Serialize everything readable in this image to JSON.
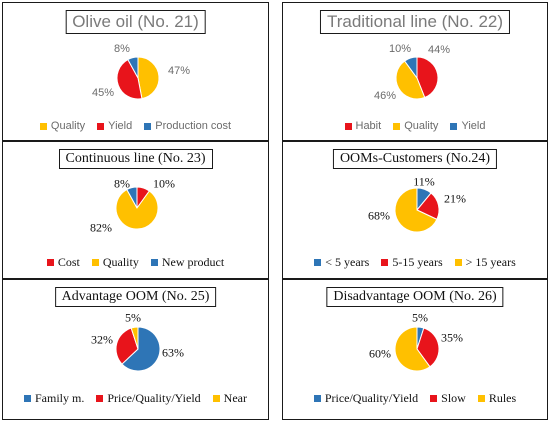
{
  "colors": {
    "red": "#e8141b",
    "yellow": "#ffc000",
    "blue": "#2e75b6"
  },
  "chart_data": [
    {
      "type": "pie",
      "title": "Olive oil (No. 21)",
      "style": "sans",
      "slices": [
        {
          "label": "Quality",
          "value": 47,
          "color": "#ffc000"
        },
        {
          "label": "Yield",
          "value": 45,
          "color": "#e8141b"
        },
        {
          "label": "Production cost",
          "value": 8,
          "color": "#2e75b6"
        }
      ],
      "data_labels": [
        "47%",
        "45%",
        "8%"
      ],
      "legend": [
        "Quality",
        "Yield",
        "Production cost"
      ]
    },
    {
      "type": "pie",
      "title": "Traditional line (No. 22)",
      "style": "sans",
      "slices": [
        {
          "label": "Habit",
          "value": 44,
          "color": "#e8141b"
        },
        {
          "label": "Quality",
          "value": 46,
          "color": "#ffc000"
        },
        {
          "label": "Yield",
          "value": 10,
          "color": "#2e75b6"
        }
      ],
      "data_labels": [
        "44%",
        "46%",
        "10%"
      ],
      "legend": [
        "Habit",
        "Quality",
        "Yield"
      ]
    },
    {
      "type": "pie",
      "title": "Continuous line (No. 23)",
      "style": "serif",
      "slices": [
        {
          "label": "Cost",
          "value": 10,
          "color": "#e8141b"
        },
        {
          "label": "Quality",
          "value": 82,
          "color": "#ffc000"
        },
        {
          "label": "New product",
          "value": 8,
          "color": "#2e75b6"
        }
      ],
      "data_labels": [
        "10%",
        "82%",
        "8%"
      ],
      "legend": [
        "Cost",
        "Quality",
        "New product"
      ]
    },
    {
      "type": "pie",
      "title": "OOMs-Customers (No.24)",
      "style": "serif",
      "slices": [
        {
          "label": "< 5 years",
          "value": 11,
          "color": "#2e75b6"
        },
        {
          "label": "5-15 years",
          "value": 21,
          "color": "#e8141b"
        },
        {
          "label": "> 15 years",
          "value": 68,
          "color": "#ffc000"
        }
      ],
      "data_labels": [
        "11%",
        "21%",
        "68%"
      ],
      "legend": [
        "< 5 years",
        "5-15 years",
        "> 15 years"
      ]
    },
    {
      "type": "pie",
      "title": "Advantage OOM (No. 25)",
      "style": "serif",
      "slices": [
        {
          "label": "Family m.",
          "value": 63,
          "color": "#2e75b6"
        },
        {
          "label": "Price/Quality/Yield",
          "value": 32,
          "color": "#e8141b"
        },
        {
          "label": "Near",
          "value": 5,
          "color": "#ffc000"
        }
      ],
      "data_labels": [
        "63%",
        "32%",
        "5%"
      ],
      "legend": [
        "Family m.",
        "Price/Quality/Yield",
        "Near"
      ]
    },
    {
      "type": "pie",
      "title": "Disadvantage OOM (No. 26)",
      "style": "serif",
      "slices": [
        {
          "label": "Price/Quality/Yield",
          "value": 5,
          "color": "#2e75b6"
        },
        {
          "label": "Slow",
          "value": 35,
          "color": "#e8141b"
        },
        {
          "label": "Rules",
          "value": 60,
          "color": "#ffc000"
        }
      ],
      "data_labels": [
        "5%",
        "35%",
        "60%"
      ],
      "legend": [
        "Price/Quality/Yield",
        "Slow",
        "Rules"
      ]
    }
  ]
}
